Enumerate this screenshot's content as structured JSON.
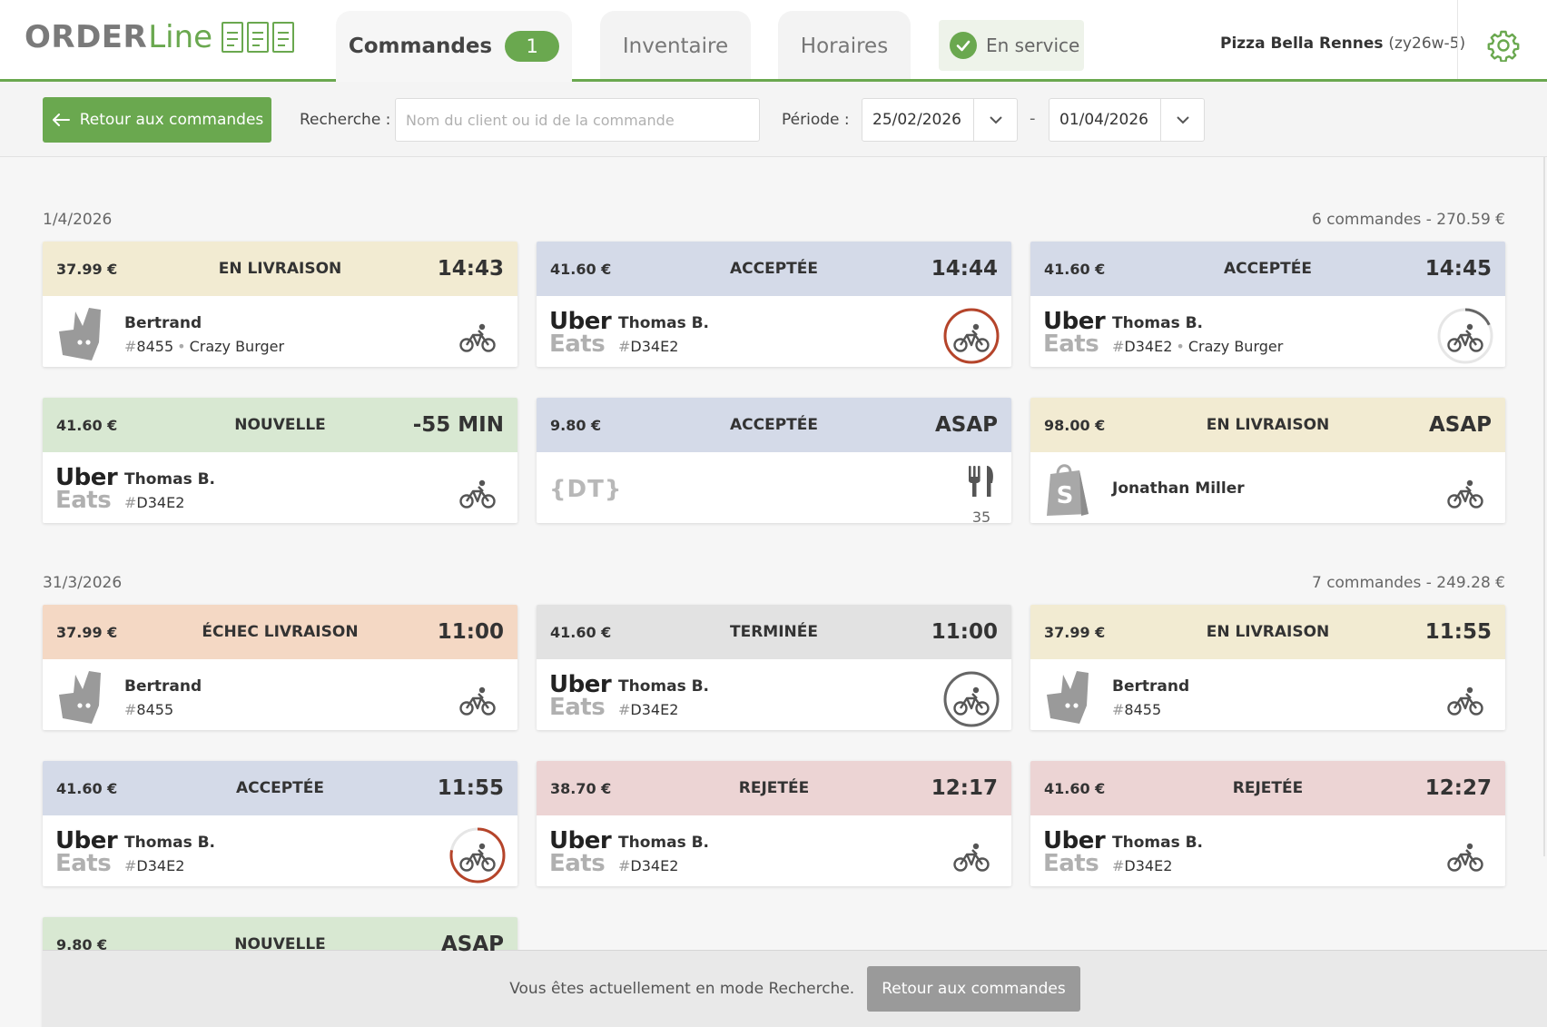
{
  "header": {
    "logo_order": "ORDER",
    "logo_line": "Line",
    "tabs": {
      "commandes": "Commandes",
      "commandes_badge": "1",
      "inventaire": "Inventaire",
      "horaires": "Horaires"
    },
    "service_status": "En service",
    "restaurant_name": "Pizza Bella Rennes",
    "restaurant_code": "(zy26w-5)",
    "accent_color": "#6aa84f"
  },
  "toolbar": {
    "back_label": "Retour aux commandes",
    "search_label": "Recherche :",
    "search_placeholder": "Nom du client ou id de la commande",
    "search_value": "",
    "period_label": "Période :",
    "date_from": "25/02/2026",
    "date_to": "01/04/2026",
    "date_separator": "-"
  },
  "days": [
    {
      "date": "1/4/2026",
      "summary": "6 commandes - 270.59 €",
      "orders": [
        {
          "price": "37.99 €",
          "status": "EN LIVRAISON",
          "time": "14:43",
          "platform": "deliveroo",
          "customer": "Bertrand",
          "order_id": "8455",
          "shop": "Crazy Burger",
          "icon": "bike-icon",
          "ring": "none"
        },
        {
          "price": "41.60 €",
          "status": "ACCEPTÉE",
          "time": "14:44",
          "platform": "ubereats",
          "customer": "Thomas B.",
          "order_id": "D34E2",
          "shop": "",
          "icon": "bike-icon",
          "ring": "red-full"
        },
        {
          "price": "41.60 €",
          "status": "ACCEPTÉE",
          "time": "14:45",
          "platform": "ubereats",
          "customer": "Thomas B.",
          "order_id": "D34E2",
          "shop": "Crazy Burger",
          "icon": "bike-icon",
          "ring": "grey-partial"
        },
        {
          "price": "41.60 €",
          "status": "NOUVELLE",
          "time": "-55 MIN",
          "platform": "ubereats",
          "customer": "Thomas B.",
          "order_id": "D34E2",
          "shop": "",
          "icon": "bike-icon",
          "ring": "none"
        },
        {
          "price": "9.80 €",
          "status": "ACCEPTÉE",
          "time": "ASAP",
          "platform": "dt",
          "customer": "",
          "order_id": "",
          "shop": "",
          "icon": "fork-knife-icon",
          "table": "35",
          "ring": "none"
        },
        {
          "price": "98.00 €",
          "status": "EN LIVRAISON",
          "time": "ASAP",
          "platform": "shopify",
          "customer": "Jonathan Miller",
          "order_id": "",
          "shop": "",
          "icon": "bike-icon",
          "ring": "none"
        }
      ]
    },
    {
      "date": "31/3/2026",
      "summary": "7 commandes - 249.28 €",
      "orders": [
        {
          "price": "37.99 €",
          "status": "ÉCHEC LIVRAISON",
          "time": "11:00",
          "platform": "deliveroo",
          "customer": "Bertrand",
          "order_id": "8455",
          "shop": "",
          "icon": "bike-icon",
          "ring": "none"
        },
        {
          "price": "41.60 €",
          "status": "TERMINÉE",
          "time": "11:00",
          "platform": "ubereats",
          "customer": "Thomas B.",
          "order_id": "D34E2",
          "shop": "",
          "icon": "bike-icon",
          "ring": "grey-full"
        },
        {
          "price": "37.99 €",
          "status": "EN LIVRAISON",
          "time": "11:55",
          "platform": "deliveroo",
          "customer": "Bertrand",
          "order_id": "8455",
          "shop": "",
          "icon": "bike-icon",
          "ring": "none"
        },
        {
          "price": "41.60 €",
          "status": "ACCEPTÉE",
          "time": "11:55",
          "platform": "ubereats",
          "customer": "Thomas B.",
          "order_id": "D34E2",
          "shop": "",
          "icon": "bike-icon",
          "ring": "red-partial"
        },
        {
          "price": "38.70 €",
          "status": "REJETÉE",
          "time": "12:17",
          "platform": "ubereats",
          "customer": "Thomas B.",
          "order_id": "D34E2",
          "shop": "",
          "icon": "bike-icon",
          "ring": "none"
        },
        {
          "price": "41.60 €",
          "status": "REJETÉE",
          "time": "12:27",
          "platform": "ubereats",
          "customer": "Thomas B.",
          "order_id": "D34E2",
          "shop": "",
          "icon": "bike-icon",
          "ring": "none"
        },
        {
          "price": "9.80 €",
          "status": "NOUVELLE",
          "time": "ASAP",
          "platform": "",
          "customer": "",
          "order_id": "",
          "shop": "",
          "icon": "",
          "ring": "none"
        }
      ]
    }
  ],
  "labels": {
    "uber_line1": "Uber",
    "uber_line2": "Eats",
    "dt_logo": "{DT}",
    "hash": "#"
  },
  "bottom_bar": {
    "message": "Vous êtes actuellement en mode Recherche.",
    "button": "Retour aux commandes"
  }
}
